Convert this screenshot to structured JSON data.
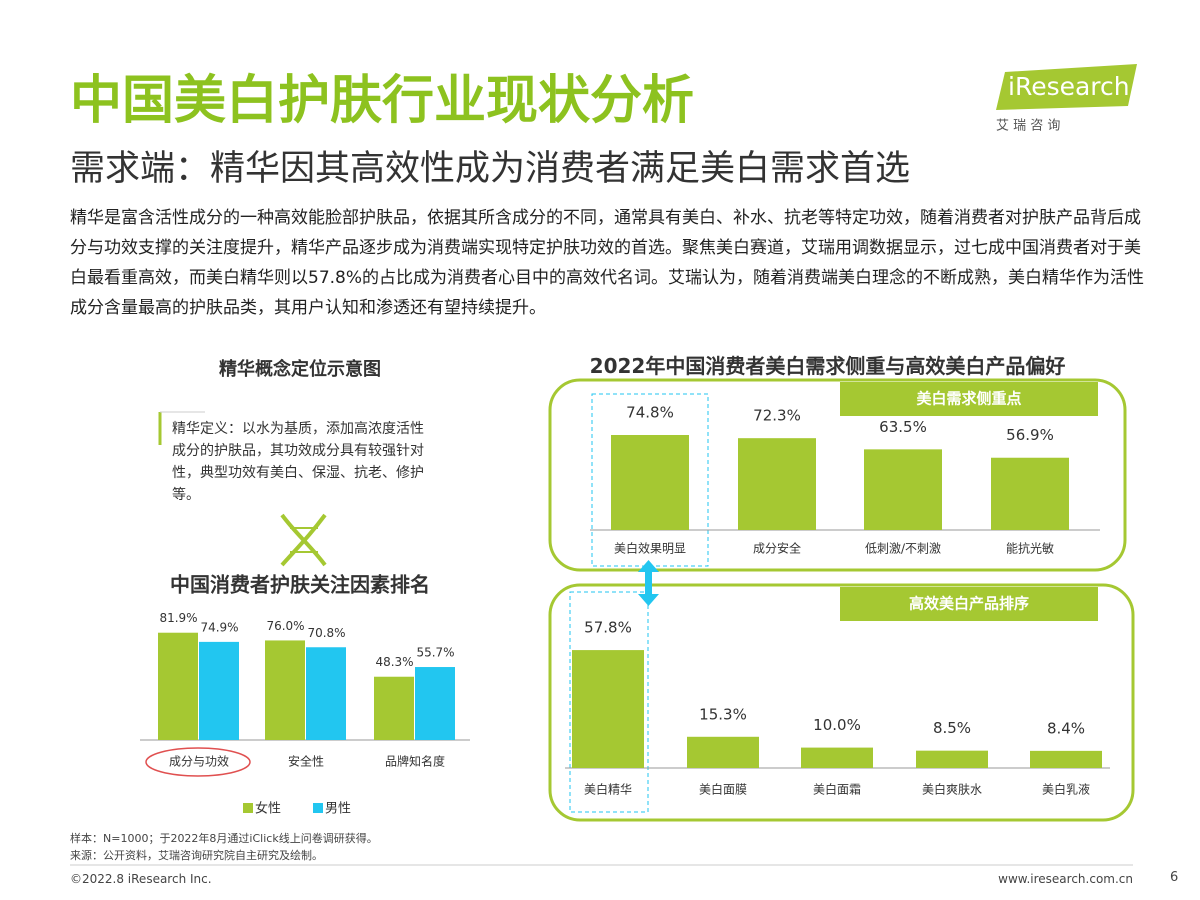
{
  "header": {
    "title": "中国美白护肤行业现状分析",
    "subtitle": "需求端：精华因其高效性成为消费者满足美白需求首选",
    "body": "精华是富含活性成分的一种高效能脸部护肤品，依据其所含成分的不同，通常具有美白、补水、抗老等特定功效，随着消费者对护肤产品背后成分与功效支撑的关注度提升，精华产品逐步成为消费端实现特定护肤功效的首选。聚焦美白赛道，艾瑞用调数据显示，过七成中国消费者对于美白最看重高效，而美白精华则以57.8%的占比成为消费者心目中的高效代名词。艾瑞认为，随着消费端美白理念的不断成熟，美白精华作为活性成分含量最高的护肤品类，其用户认知和渗透还有望持续提升。"
  },
  "logo": {
    "name": "iResearch",
    "tagline": "艾 瑞 咨 询"
  },
  "concept": {
    "title": "精华概念定位示意图",
    "text": "精华定义：以水为基质，添加高浓度活性成分的护肤品，其功效成分具有较强针对性，典型功效有美白、保湿、抗老、修护等。"
  },
  "right_panel": {
    "title": "2022年中国消费者美白需求侧重与高效美白产品偏好"
  },
  "chart_data": [
    {
      "type": "bar",
      "title": "中国消费者护肤关注因素排名",
      "categories": [
        "成分与功效",
        "安全性",
        "品牌知名度"
      ],
      "series": [
        {
          "name": "女性",
          "color": "#a5c832",
          "values": [
            81.9,
            76.0,
            48.3
          ],
          "value_labels": [
            "81.9%",
            "76.0%",
            "48.3%"
          ]
        },
        {
          "name": "男性",
          "color": "#22c6f0",
          "values": [
            74.9,
            70.8,
            55.7
          ],
          "value_labels": [
            "74.9%",
            "70.8%",
            "55.7%"
          ]
        }
      ]
    },
    {
      "type": "bar",
      "title": "美白需求侧重点",
      "categories": [
        "美白效果明显",
        "成分安全",
        "低刺激/不刺激",
        "能抗光敏"
      ],
      "color": "#a5c832",
      "values": [
        74.8,
        72.3,
        63.5,
        56.9
      ],
      "value_labels": [
        "74.8%",
        "72.3%",
        "63.5%",
        "56.9%"
      ]
    },
    {
      "type": "bar",
      "title": "高效美白产品排序",
      "categories": [
        "美白精华",
        "美白面膜",
        "美白面霜",
        "美白爽肤水",
        "美白乳液"
      ],
      "color": "#a5c832",
      "values": [
        57.8,
        15.3,
        10.0,
        8.5,
        8.4
      ],
      "value_labels": [
        "57.8%",
        "15.3%",
        "10.0%",
        "8.5%",
        "8.4%"
      ]
    }
  ],
  "footer": {
    "sample": "样本：N=1000；于2022年8月通过iClick线上问卷调研获得。",
    "source": "来源：公开资料，艾瑞咨询研究院自主研究及绘制。",
    "copyright": "©2022.8 iResearch Inc.",
    "url": "www.iresearch.com.cn",
    "page": "6"
  }
}
